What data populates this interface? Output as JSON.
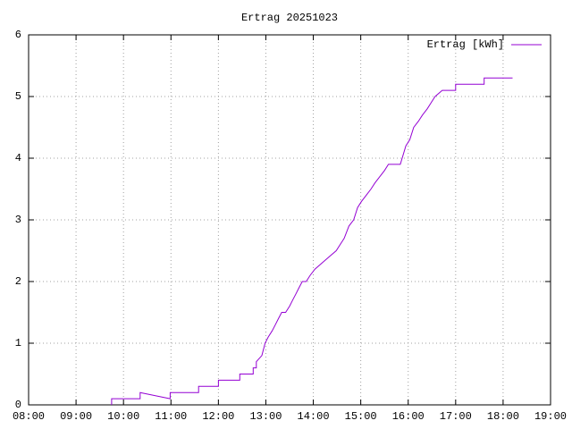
{
  "chart_data": {
    "type": "line",
    "title": "Ertrag 20251023",
    "x": [
      "09:45",
      "09:45",
      "10:21",
      "10:21",
      "10:59",
      "10:59",
      "11:35",
      "11:35",
      "12:00",
      "12:00",
      "12:27",
      "12:27",
      "12:44",
      "12:44",
      "12:48",
      "12:48",
      "12:55",
      "12:59",
      "13:03",
      "13:08",
      "13:12",
      "13:16",
      "13:20",
      "13:25",
      "13:30",
      "13:34",
      "13:38",
      "13:42",
      "13:46",
      "13:51",
      "13:56",
      "14:02",
      "14:11",
      "14:20",
      "14:29",
      "14:34",
      "14:39",
      "14:45",
      "14:51",
      "14:56",
      "15:01",
      "15:07",
      "15:13",
      "15:18",
      "15:24",
      "15:30",
      "15:35",
      "15:50",
      "15:57",
      "16:02",
      "16:07",
      "16:13",
      "16:18",
      "16:24",
      "16:29",
      "16:34",
      "16:43",
      "17:00",
      "17:00",
      "17:36",
      "17:36",
      "18:12"
    ],
    "series": [
      {
        "name": "Ertrag [kWh]",
        "color": "#9400d3",
        "values": [
          0,
          0.1,
          0.1,
          0.2,
          0.1,
          0.2,
          0.2,
          0.3,
          0.3,
          0.4,
          0.4,
          0.5,
          0.5,
          0.6,
          0.6,
          0.7,
          0.8,
          1.0,
          1.1,
          1.2,
          1.3,
          1.4,
          1.5,
          1.5,
          1.6,
          1.7,
          1.8,
          1.9,
          2.0,
          2.0,
          2.1,
          2.2,
          2.3,
          2.4,
          2.5,
          2.6,
          2.7,
          2.9,
          3.0,
          3.2,
          3.3,
          3.4,
          3.5,
          3.6,
          3.7,
          3.8,
          3.9,
          3.9,
          4.2,
          4.3,
          4.5,
          4.6,
          4.7,
          4.8,
          4.9,
          5.0,
          5.1,
          5.1,
          5.2,
          5.2,
          5.3,
          5.3
        ]
      }
    ],
    "xlim": [
      "08:00",
      "19:00"
    ],
    "xticks": [
      "08:00",
      "09:00",
      "10:00",
      "11:00",
      "12:00",
      "13:00",
      "14:00",
      "15:00",
      "16:00",
      "17:00",
      "18:00",
      "19:00"
    ],
    "ylim": [
      0,
      6
    ],
    "yticks": [
      0,
      1,
      2,
      3,
      4,
      5,
      6
    ],
    "grid": true,
    "legend": "top-right"
  }
}
